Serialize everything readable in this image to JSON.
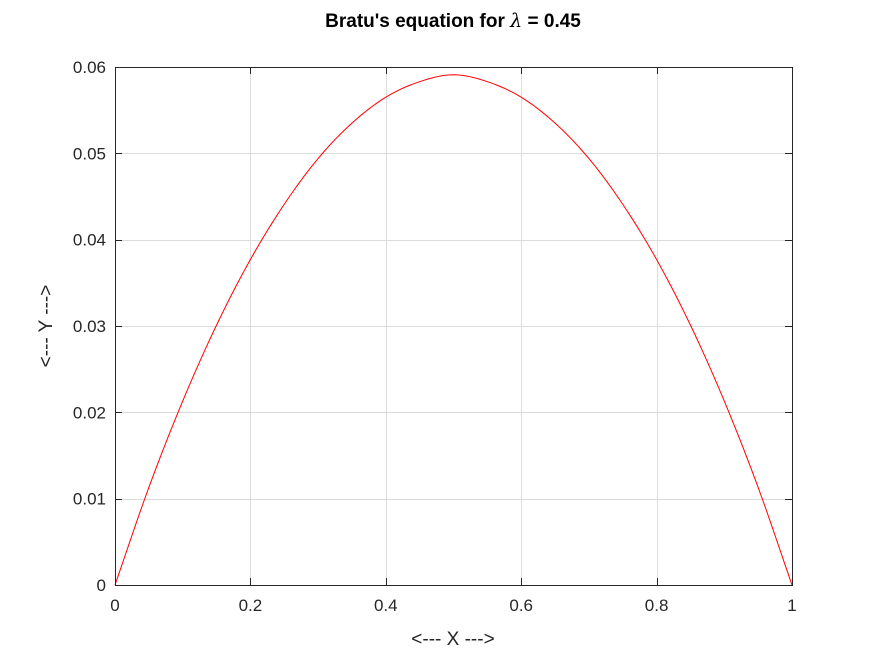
{
  "chart_data": {
    "type": "line",
    "title": {
      "prefix": "Bratu's equation for ",
      "symbol": "λ",
      "suffix": " = 0.45"
    },
    "xlabel": "<--- X --->",
    "ylabel": "<--- Y --->",
    "xlim": [
      0,
      1
    ],
    "ylim": [
      0,
      0.06
    ],
    "xticks": [
      0,
      0.2,
      0.4,
      0.6,
      0.8,
      1
    ],
    "xtick_labels": [
      "0",
      "0.2",
      "0.4",
      "0.6",
      "0.8",
      "1"
    ],
    "yticks": [
      0,
      0.01,
      0.02,
      0.03,
      0.04,
      0.05,
      0.06
    ],
    "ytick_labels": [
      "0",
      "0.01",
      "0.02",
      "0.03",
      "0.04",
      "0.05",
      "0.06"
    ],
    "grid": true,
    "box": true,
    "series": [
      {
        "color": "#ff0000",
        "x": [
          0,
          0.05,
          0.1,
          0.15,
          0.2,
          0.25,
          0.3,
          0.35,
          0.4,
          0.45,
          0.5,
          0.55,
          0.6,
          0.65,
          0.7,
          0.75,
          0.8,
          0.85,
          0.9,
          0.95,
          1
        ],
        "y": [
          0,
          0.0113,
          0.0213,
          0.0301,
          0.0377,
          0.0441,
          0.0494,
          0.0535,
          0.0565,
          0.0583,
          0.0591,
          0.0583,
          0.0565,
          0.0535,
          0.0494,
          0.0441,
          0.0377,
          0.0301,
          0.0213,
          0.0113,
          0
        ]
      }
    ]
  }
}
